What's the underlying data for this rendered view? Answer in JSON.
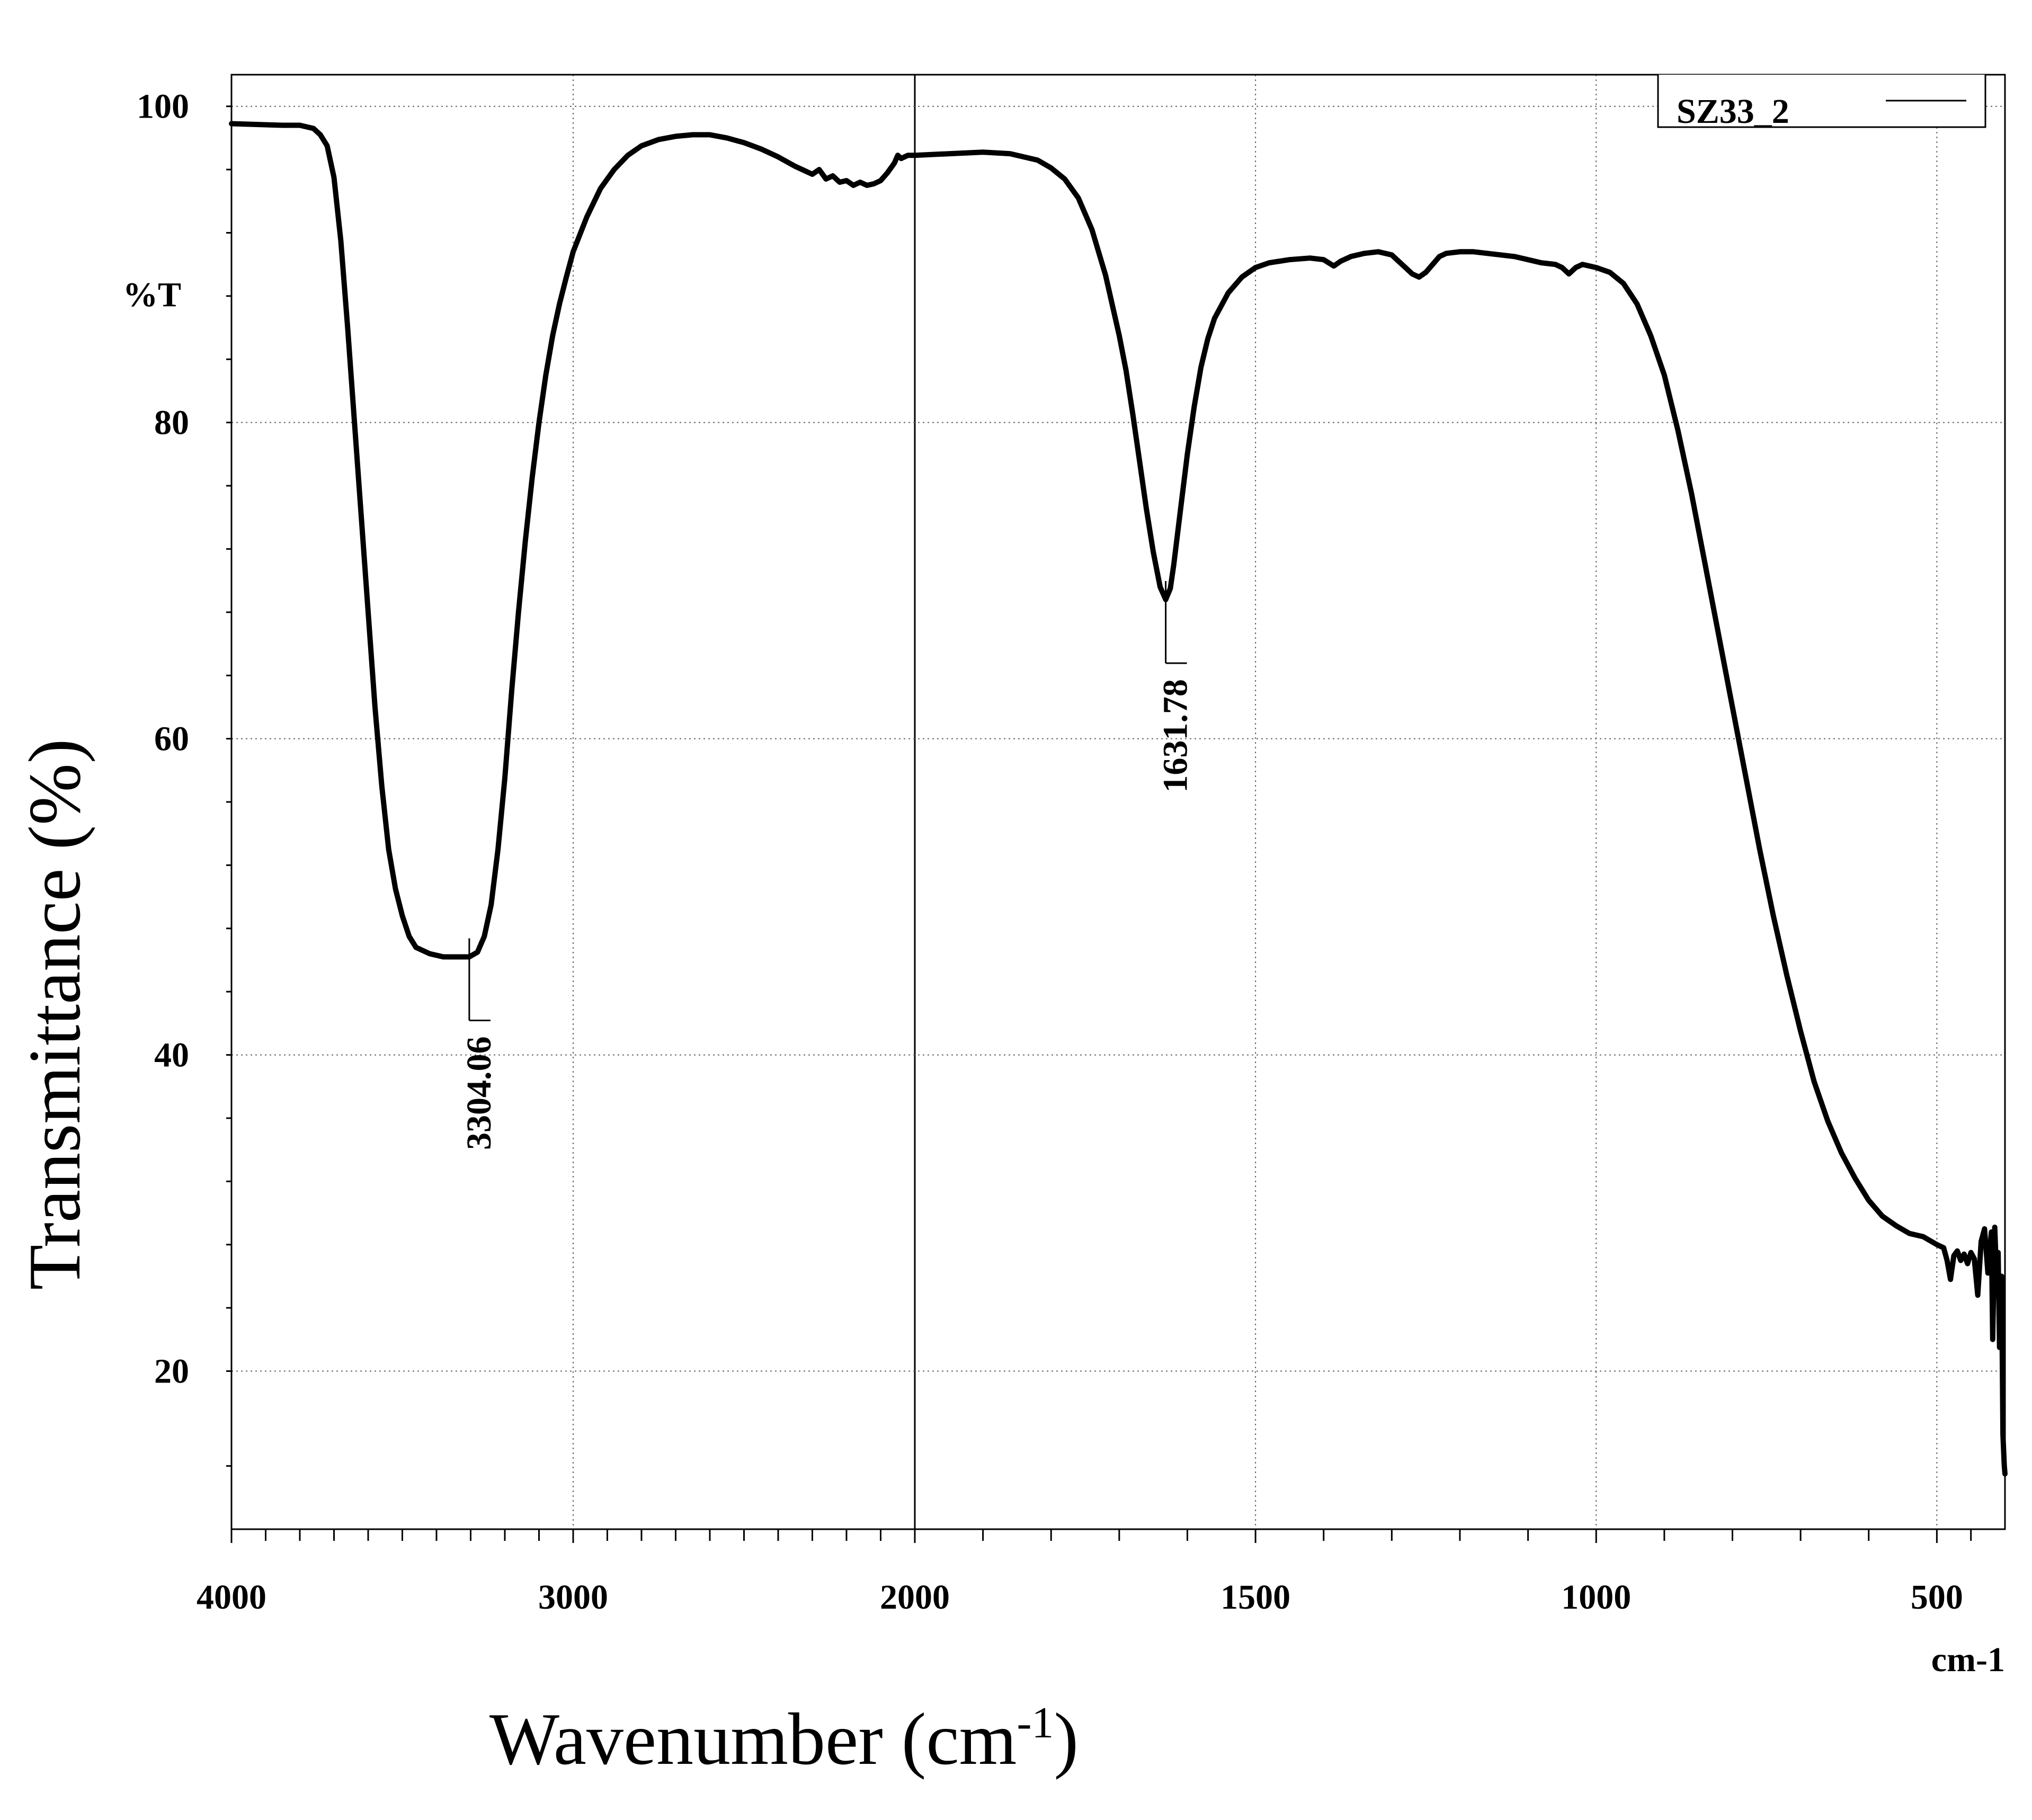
{
  "chart_data": {
    "type": "line",
    "xlabel": "Wavenumber (cm",
    "xlabel_sup": "-1",
    "xlabel_end": ")",
    "ylabel": "Transmittance (%)",
    "y_unit_label": "%T",
    "x_unit_label": "cm-1",
    "xlim": [
      4000,
      400
    ],
    "ylim": [
      10,
      102
    ],
    "x_reversed": true,
    "x_ticks_major": [
      4000,
      3000,
      2000,
      1500,
      1000,
      500
    ],
    "x_tick_labels": [
      "4000",
      "3000",
      "2000",
      "1500",
      "1000",
      "500"
    ],
    "x_ticks_minor": [
      3900,
      3800,
      3700,
      3600,
      3500,
      3400,
      3300,
      3200,
      3100,
      2900,
      2800,
      2700,
      2600,
      2500,
      2400,
      2300,
      2200,
      2100,
      1900,
      1800,
      1700,
      1600,
      1400,
      1300,
      1200,
      1100,
      900,
      800,
      700,
      600,
      450
    ],
    "y_ticks_major": [
      20,
      40,
      60,
      80,
      100
    ],
    "y_tick_labels": [
      "20",
      "40",
      "60",
      "80",
      "100"
    ],
    "y_ticks_minor": [
      14,
      24,
      28,
      32,
      36,
      44,
      48,
      52,
      56,
      64,
      68,
      72,
      76,
      84,
      88,
      92,
      96
    ],
    "grid": true,
    "legend": {
      "position": "top-right",
      "entries": [
        "SZ33_2"
      ]
    },
    "annotations": [
      {
        "label": "3304.06",
        "x": 3304.06,
        "y": 46.2
      },
      {
        "label": "1631.78",
        "x": 1631.78,
        "y": 68.8
      }
    ],
    "series": [
      {
        "name": "SZ33_2",
        "color": "#000000",
        "points": [
          [
            4000,
            98.9
          ],
          [
            3850,
            98.8
          ],
          [
            3800,
            98.8
          ],
          [
            3760,
            98.6
          ],
          [
            3740,
            98.2
          ],
          [
            3720,
            97.5
          ],
          [
            3700,
            95.5
          ],
          [
            3680,
            91.5
          ],
          [
            3660,
            86
          ],
          [
            3640,
            80
          ],
          [
            3620,
            74
          ],
          [
            3600,
            68
          ],
          [
            3580,
            62
          ],
          [
            3560,
            57
          ],
          [
            3540,
            53
          ],
          [
            3520,
            50.5
          ],
          [
            3500,
            48.8
          ],
          [
            3480,
            47.5
          ],
          [
            3460,
            46.8
          ],
          [
            3420,
            46.4
          ],
          [
            3380,
            46.2
          ],
          [
            3340,
            46.2
          ],
          [
            3304.06,
            46.2
          ],
          [
            3280,
            46.5
          ],
          [
            3260,
            47.5
          ],
          [
            3240,
            49.5
          ],
          [
            3220,
            53
          ],
          [
            3200,
            57.5
          ],
          [
            3180,
            63
          ],
          [
            3160,
            68
          ],
          [
            3140,
            72.5
          ],
          [
            3120,
            76.5
          ],
          [
            3100,
            80
          ],
          [
            3080,
            83
          ],
          [
            3060,
            85.5
          ],
          [
            3040,
            87.5
          ],
          [
            3020,
            89.2
          ],
          [
            3000,
            90.8
          ],
          [
            2960,
            93
          ],
          [
            2920,
            94.8
          ],
          [
            2880,
            96
          ],
          [
            2840,
            96.9
          ],
          [
            2800,
            97.5
          ],
          [
            2750,
            97.9
          ],
          [
            2700,
            98.1
          ],
          [
            2650,
            98.2
          ],
          [
            2600,
            98.2
          ],
          [
            2550,
            98.0
          ],
          [
            2500,
            97.7
          ],
          [
            2450,
            97.3
          ],
          [
            2400,
            96.8
          ],
          [
            2350,
            96.2
          ],
          [
            2300,
            95.7
          ],
          [
            2280,
            96
          ],
          [
            2260,
            95.4
          ],
          [
            2240,
            95.6
          ],
          [
            2220,
            95.2
          ],
          [
            2200,
            95.3
          ],
          [
            2180,
            95.0
          ],
          [
            2160,
            95.2
          ],
          [
            2140,
            95.0
          ],
          [
            2120,
            95.1
          ],
          [
            2100,
            95.3
          ],
          [
            2080,
            95.8
          ],
          [
            2060,
            96.4
          ],
          [
            2050,
            96.9
          ],
          [
            2040,
            96.7
          ],
          [
            2020,
            96.9
          ],
          [
            2000,
            96.9
          ],
          [
            1950,
            97.0
          ],
          [
            1900,
            97.1
          ],
          [
            1860,
            97.0
          ],
          [
            1820,
            96.6
          ],
          [
            1800,
            96.1
          ],
          [
            1780,
            95.4
          ],
          [
            1760,
            94.2
          ],
          [
            1740,
            92.2
          ],
          [
            1720,
            89.3
          ],
          [
            1700,
            85.5
          ],
          [
            1690,
            83.3
          ],
          [
            1680,
            80.5
          ],
          [
            1670,
            77.5
          ],
          [
            1660,
            74.5
          ],
          [
            1650,
            71.8
          ],
          [
            1640,
            69.6
          ],
          [
            1631.78,
            68.8
          ],
          [
            1625,
            69.5
          ],
          [
            1620,
            71
          ],
          [
            1610,
            74.5
          ],
          [
            1600,
            78
          ],
          [
            1590,
            81
          ],
          [
            1580,
            83.5
          ],
          [
            1570,
            85.3
          ],
          [
            1560,
            86.6
          ],
          [
            1540,
            88.2
          ],
          [
            1520,
            89.2
          ],
          [
            1500,
            89.8
          ],
          [
            1480,
            90.1
          ],
          [
            1450,
            90.3
          ],
          [
            1420,
            90.4
          ],
          [
            1400,
            90.3
          ],
          [
            1385,
            89.9
          ],
          [
            1375,
            90.2
          ],
          [
            1360,
            90.5
          ],
          [
            1340,
            90.7
          ],
          [
            1320,
            90.8
          ],
          [
            1300,
            90.6
          ],
          [
            1290,
            90.2
          ],
          [
            1280,
            89.8
          ],
          [
            1270,
            89.4
          ],
          [
            1260,
            89.2
          ],
          [
            1250,
            89.5
          ],
          [
            1240,
            90.0
          ],
          [
            1230,
            90.5
          ],
          [
            1220,
            90.7
          ],
          [
            1200,
            90.8
          ],
          [
            1180,
            90.8
          ],
          [
            1160,
            90.7
          ],
          [
            1140,
            90.6
          ],
          [
            1120,
            90.5
          ],
          [
            1100,
            90.3
          ],
          [
            1080,
            90.1
          ],
          [
            1060,
            90.0
          ],
          [
            1050,
            89.8
          ],
          [
            1040,
            89.4
          ],
          [
            1030,
            89.8
          ],
          [
            1020,
            90.0
          ],
          [
            1000,
            89.8
          ],
          [
            980,
            89.5
          ],
          [
            960,
            88.8
          ],
          [
            940,
            87.5
          ],
          [
            920,
            85.5
          ],
          [
            900,
            83
          ],
          [
            880,
            79.5
          ],
          [
            860,
            75.5
          ],
          [
            840,
            71
          ],
          [
            820,
            66.5
          ],
          [
            800,
            62
          ],
          [
            780,
            57.5
          ],
          [
            760,
            53
          ],
          [
            740,
            48.8
          ],
          [
            720,
            45
          ],
          [
            700,
            41.5
          ],
          [
            680,
            38.3
          ],
          [
            660,
            35.8
          ],
          [
            640,
            33.8
          ],
          [
            620,
            32.2
          ],
          [
            600,
            30.8
          ],
          [
            580,
            29.8
          ],
          [
            560,
            29.2
          ],
          [
            540,
            28.7
          ],
          [
            520,
            28.5
          ],
          [
            500,
            28.0
          ],
          [
            490,
            27.8
          ],
          [
            485,
            27.0
          ],
          [
            480,
            25.8
          ],
          [
            475,
            27.3
          ],
          [
            470,
            27.6
          ],
          [
            465,
            27.0
          ],
          [
            460,
            27.4
          ],
          [
            455,
            26.8
          ],
          [
            450,
            27.5
          ],
          [
            445,
            27.1
          ],
          [
            440,
            24.8
          ],
          [
            435,
            28.2
          ],
          [
            430,
            29.0
          ],
          [
            425,
            26.2
          ],
          [
            420,
            28.8
          ],
          [
            418,
            22.0
          ],
          [
            415,
            29.1
          ],
          [
            412,
            25.5
          ],
          [
            410,
            27.5
          ],
          [
            408,
            21.5
          ],
          [
            405,
            26.0
          ],
          [
            403,
            16.0
          ],
          [
            401,
            14.0
          ],
          [
            400,
            13.5
          ]
        ]
      }
    ]
  }
}
